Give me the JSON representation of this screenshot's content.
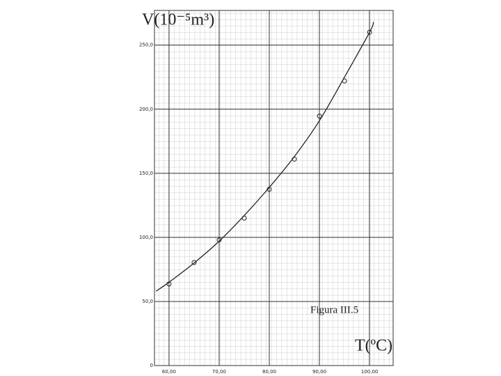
{
  "chart_data": {
    "type": "scatter",
    "y_label": "V(10⁻⁵m³)",
    "x_label": "T(ºC)",
    "annotation": "Figura III.5",
    "xlim": [
      57.1,
      104.7
    ],
    "ylim": [
      0,
      277
    ],
    "xticks": [
      {
        "value": 60,
        "label": "60,00"
      },
      {
        "value": 70,
        "label": "70,00"
      },
      {
        "value": 80,
        "label": "80,00"
      },
      {
        "value": 90,
        "label": "90,00"
      },
      {
        "value": 100,
        "label": "100,00"
      }
    ],
    "yticks": [
      0,
      {
        "value": 50,
        "label": "50,0"
      },
      {
        "value": 100,
        "label": "100,0"
      },
      {
        "value": 150,
        "label": "150,0"
      },
      {
        "value": 200,
        "label": "200,0"
      },
      {
        "value": 250,
        "label": "250,0"
      }
    ],
    "grid": true,
    "series": [
      {
        "color": "#222222",
        "x": [
          60,
          65,
          70,
          75,
          80,
          85,
          90,
          95,
          100
        ],
        "values": [
          63.6,
          80.4,
          98,
          115,
          137.5,
          161,
          194.6,
          222,
          260
        ]
      },
      {
        "color": "#222222",
        "style": "line",
        "x": [
          57.4,
          60,
          65,
          70,
          75,
          80,
          85,
          90,
          95,
          100,
          100.8
        ],
        "values": [
          58,
          65,
          80,
          97,
          117,
          139,
          163,
          191,
          225,
          260,
          268
        ]
      }
    ]
  }
}
